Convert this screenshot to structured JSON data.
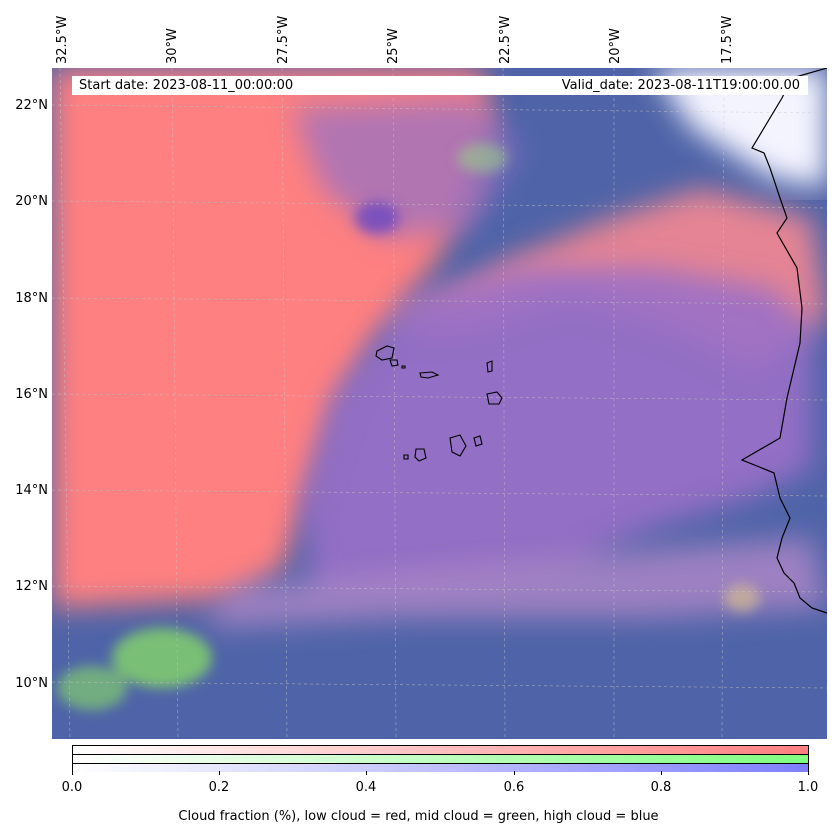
{
  "map": {
    "start_date": "Start date: 2023-08-11_00:00:00",
    "valid_date": "Valid_date: 2023-08-11T19:00:00.00",
    "lon_labels": [
      "32.5°W",
      "30°W",
      "27.5°W",
      "25°W",
      "22.5°W",
      "20°W",
      "17.5°W"
    ],
    "lat_labels": [
      "22°N",
      "20°N",
      "18°N",
      "16°N",
      "14°N",
      "12°N",
      "10°N"
    ],
    "low_cloud_color": "#ff7f7f",
    "mid_cloud_color": "#7fff7f",
    "high_cloud_color": "#7f7fff",
    "ocean_clear_color": "#4f6aa8"
  },
  "colorbar": {
    "ticks": [
      "0.0",
      "0.2",
      "0.4",
      "0.6",
      "0.8",
      "1.0"
    ],
    "label": "Cloud fraction (%), low cloud = red, mid cloud = green, high cloud = blue"
  }
}
